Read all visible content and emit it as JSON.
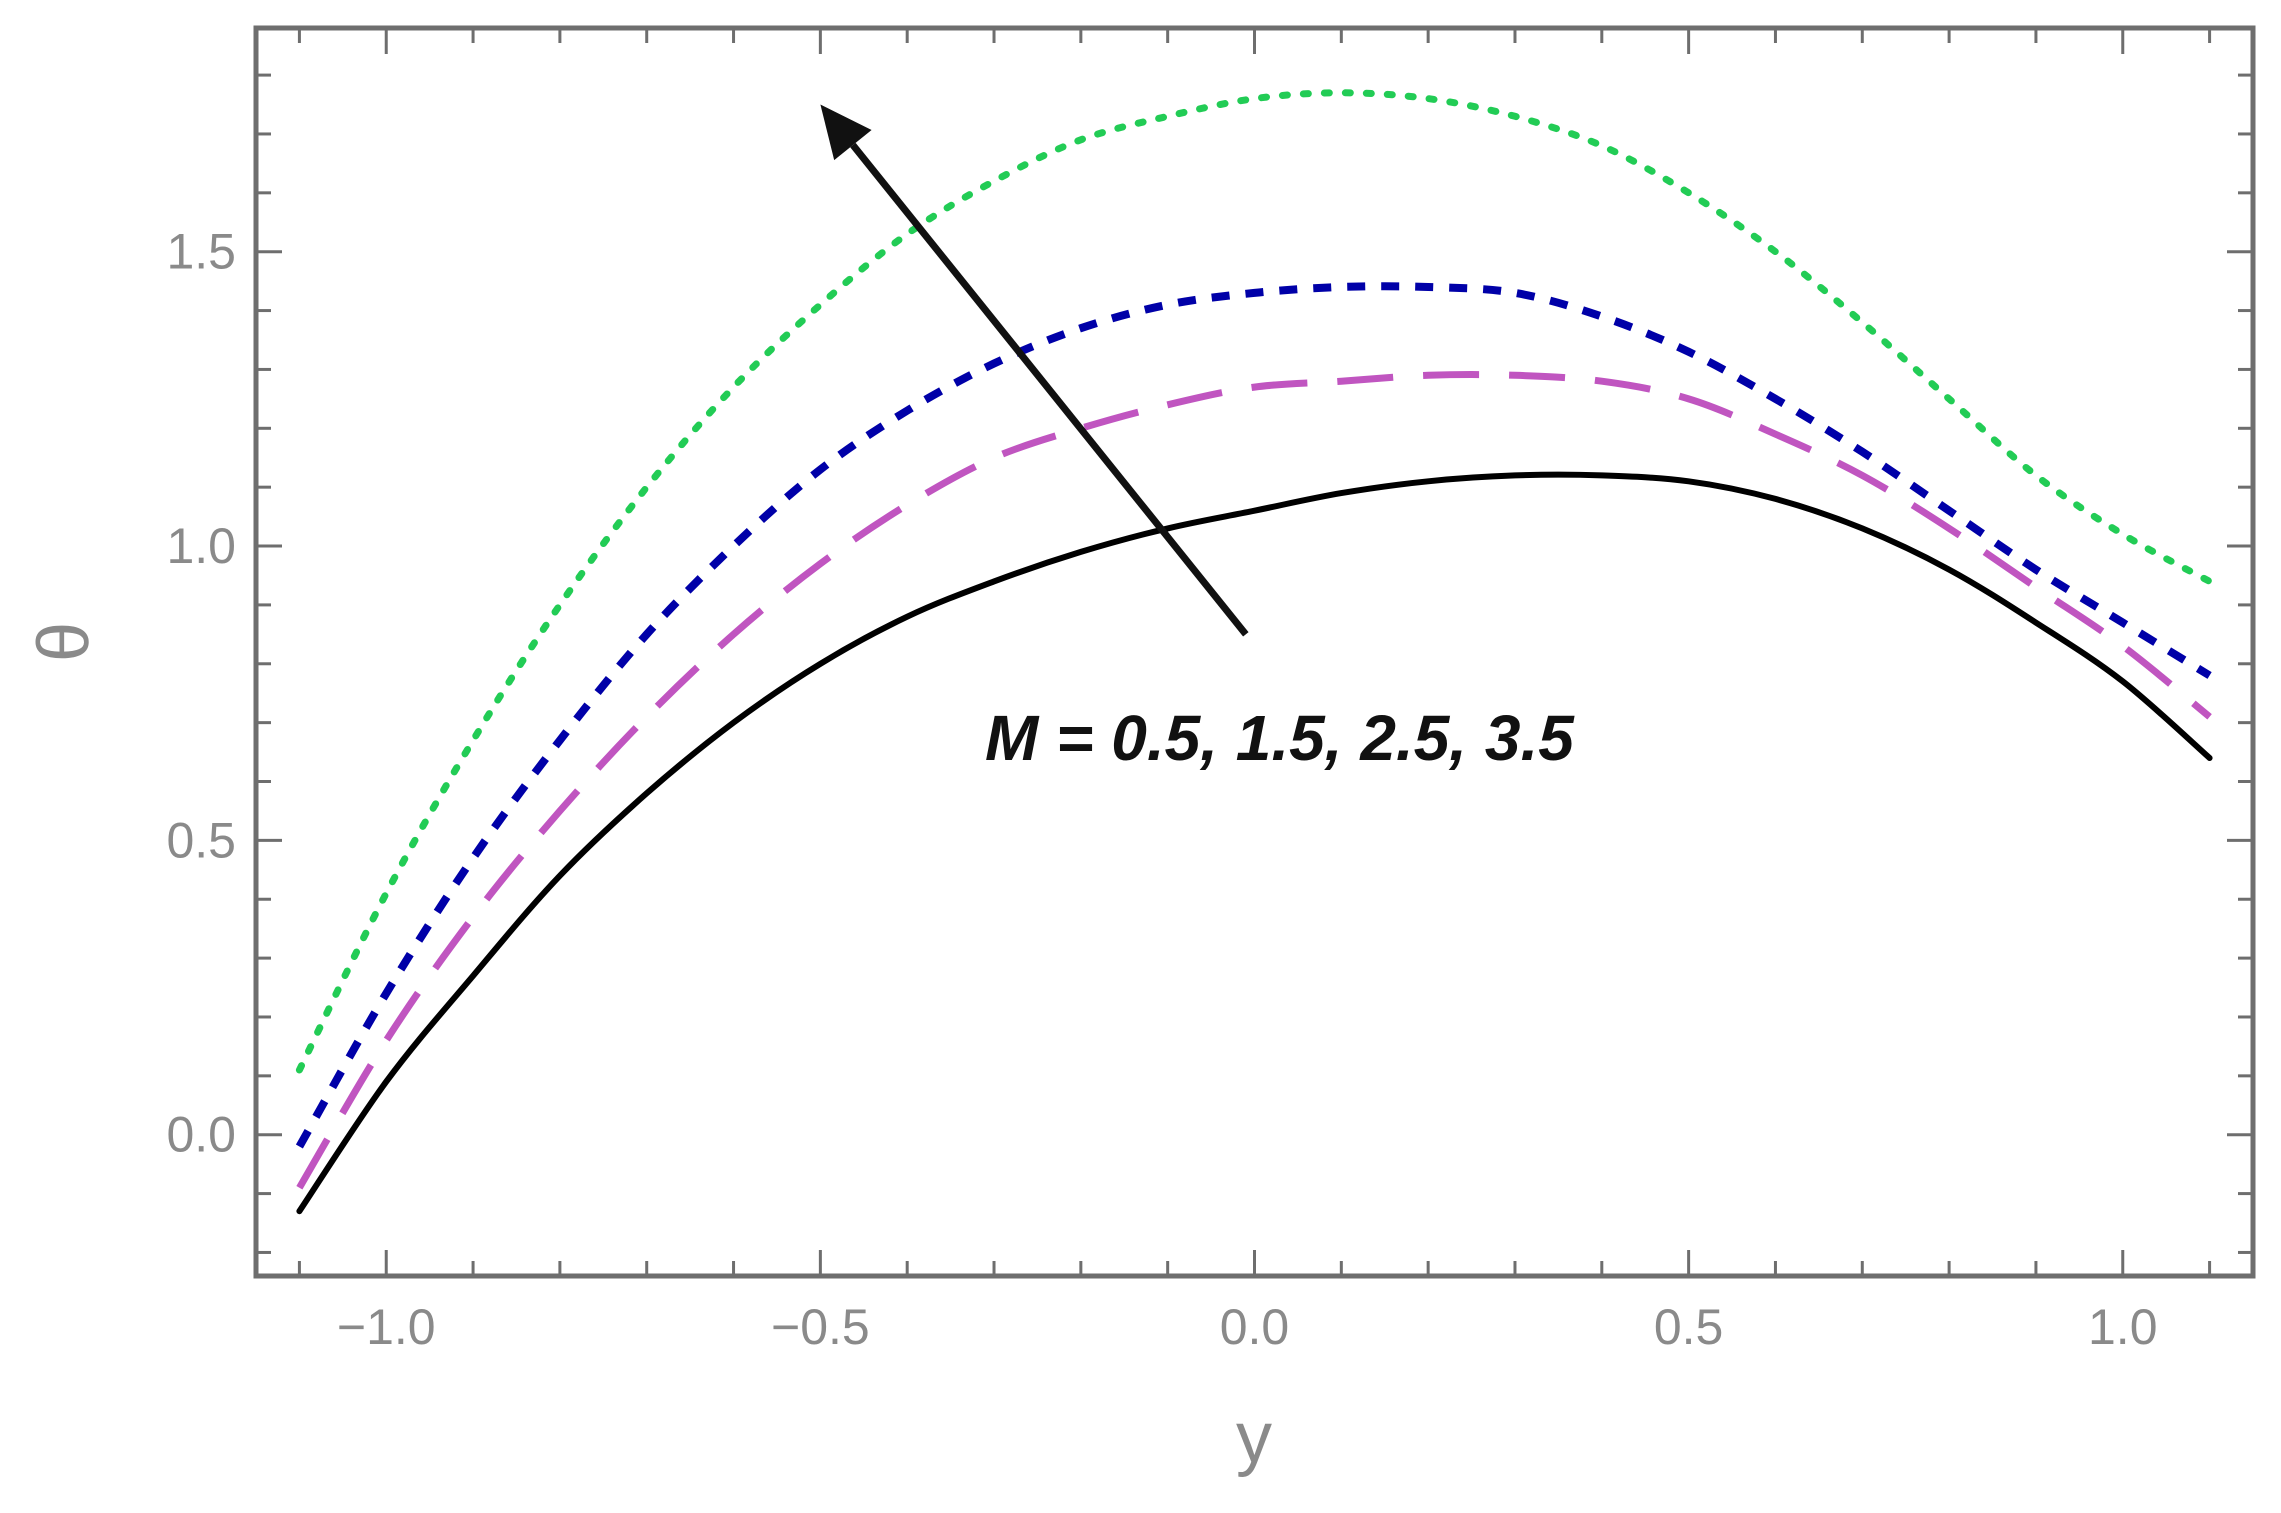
{
  "chart_data": {
    "type": "line",
    "xlabel": "y",
    "ylabel": "θ",
    "xlim": [
      -1.15,
      1.15
    ],
    "ylim": [
      -0.24,
      1.88
    ],
    "x_ticks": [
      -1.0,
      -0.5,
      0.0,
      0.5,
      1.0
    ],
    "x_tick_labels": [
      "−1.0",
      "−0.5",
      "0.0",
      "0.5",
      "1.0"
    ],
    "y_ticks": [
      0.0,
      0.5,
      1.0,
      1.5
    ],
    "y_tick_labels": [
      "0.0",
      "0.5",
      "1.0",
      "1.5"
    ],
    "grid": false,
    "annotation": "M = 0.5, 1.5, 2.5, 3.5",
    "arrow_from": [
      -0.01,
      0.85
    ],
    "arrow_to": [
      -0.5,
      1.75
    ],
    "series": [
      {
        "color": "#000000",
        "style": "solid",
        "x": [
          -1.1,
          -1.0,
          -0.9,
          -0.8,
          -0.7,
          -0.6,
          -0.5,
          -0.4,
          -0.3,
          -0.2,
          -0.1,
          0.0,
          0.1,
          0.2,
          0.3,
          0.4,
          0.5,
          0.6,
          0.7,
          0.8,
          0.9,
          1.0,
          1.1
        ],
        "values": [
          -0.13,
          0.09,
          0.27,
          0.44,
          0.58,
          0.7,
          0.8,
          0.88,
          0.94,
          0.99,
          1.03,
          1.06,
          1.09,
          1.11,
          1.12,
          1.12,
          1.11,
          1.08,
          1.03,
          0.96,
          0.87,
          0.77,
          0.64
        ]
      },
      {
        "color": "#c055c0",
        "style": "dashed-long",
        "x": [
          -1.1,
          -1.0,
          -0.9,
          -0.8,
          -0.7,
          -0.6,
          -0.5,
          -0.4,
          -0.3,
          -0.2,
          -0.1,
          0.0,
          0.1,
          0.2,
          0.3,
          0.4,
          0.5,
          0.6,
          0.7,
          0.8,
          0.9,
          1.0,
          1.1
        ],
        "values": [
          -0.09,
          0.16,
          0.37,
          0.55,
          0.71,
          0.85,
          0.97,
          1.07,
          1.15,
          1.2,
          1.24,
          1.27,
          1.28,
          1.29,
          1.29,
          1.28,
          1.25,
          1.19,
          1.12,
          1.03,
          0.93,
          0.83,
          0.71
        ]
      },
      {
        "color": "#0000a8",
        "style": "dashed-short",
        "x": [
          -1.1,
          -1.0,
          -0.9,
          -0.8,
          -0.7,
          -0.6,
          -0.5,
          -0.4,
          -0.3,
          -0.2,
          -0.1,
          0.0,
          0.1,
          0.2,
          0.3,
          0.4,
          0.5,
          0.6,
          0.7,
          0.8,
          0.9,
          1.0,
          1.1
        ],
        "values": [
          -0.02,
          0.24,
          0.47,
          0.67,
          0.85,
          1.0,
          1.13,
          1.23,
          1.31,
          1.37,
          1.41,
          1.43,
          1.44,
          1.44,
          1.43,
          1.39,
          1.33,
          1.25,
          1.16,
          1.06,
          0.96,
          0.87,
          0.78
        ]
      },
      {
        "color": "#22cc55",
        "style": "dotted",
        "x": [
          -1.1,
          -1.0,
          -0.9,
          -0.8,
          -0.7,
          -0.6,
          -0.5,
          -0.4,
          -0.3,
          -0.2,
          -0.1,
          0.0,
          0.1,
          0.2,
          0.3,
          0.4,
          0.5,
          0.6,
          0.7,
          0.8,
          0.9,
          1.0,
          1.1
        ],
        "values": [
          0.11,
          0.41,
          0.67,
          0.9,
          1.1,
          1.27,
          1.41,
          1.53,
          1.62,
          1.69,
          1.73,
          1.76,
          1.77,
          1.76,
          1.73,
          1.68,
          1.6,
          1.5,
          1.38,
          1.25,
          1.12,
          1.02,
          0.94
        ]
      }
    ]
  }
}
